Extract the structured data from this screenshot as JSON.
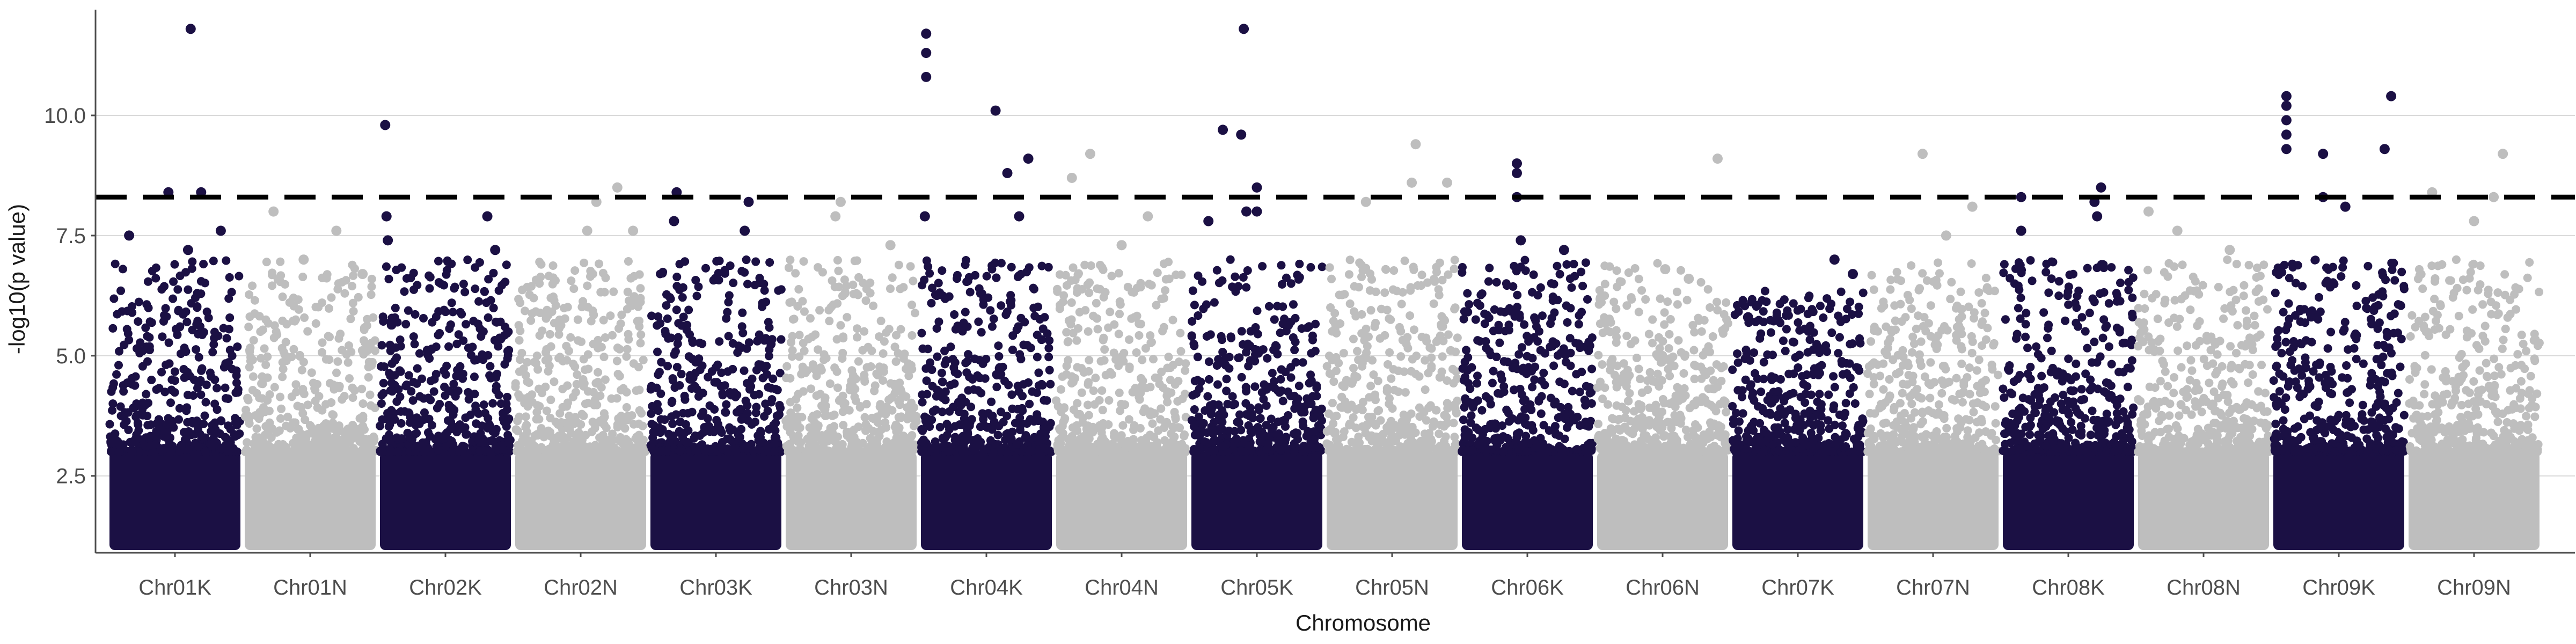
{
  "chart_data": {
    "type": "scatter",
    "title": "",
    "xlabel": "Chromosome",
    "ylabel": "-log10(p value)",
    "ylim": [
      0.9,
      12.2
    ],
    "yticks": [
      2.5,
      5.0,
      7.5,
      10.0
    ],
    "ytick_labels": [
      "2.5",
      "5.0",
      "7.5",
      "10.0"
    ],
    "grid": "horizontal major only",
    "legend": "none",
    "threshold": {
      "value": 8.3,
      "style": "dashed",
      "color": "#000000"
    },
    "colors": {
      "dark": "#1b1044",
      "light": "#bebebe"
    },
    "categories": [
      "Chr01K",
      "Chr01N",
      "Chr02K",
      "Chr02N",
      "Chr03K",
      "Chr03N",
      "Chr04K",
      "Chr04N",
      "Chr05K",
      "Chr05N",
      "Chr06K",
      "Chr06N",
      "Chr07K",
      "Chr07N",
      "Chr08K",
      "Chr08N",
      "Chr09K",
      "Chr09N"
    ],
    "series": [
      {
        "chromosome": "Chr01K",
        "color": "dark",
        "max": 11.8,
        "peaks": [
          [
            0.62,
            11.8
          ],
          [
            0.45,
            8.4
          ],
          [
            0.7,
            8.4
          ],
          [
            0.15,
            7.5
          ],
          [
            0.85,
            7.6
          ],
          [
            0.6,
            7.2
          ]
        ]
      },
      {
        "chromosome": "Chr01N",
        "color": "light",
        "max": 8.0,
        "peaks": [
          [
            0.22,
            8.0
          ],
          [
            0.7,
            7.6
          ],
          [
            0.45,
            7.0
          ],
          [
            0.9,
            6.7
          ]
        ]
      },
      {
        "chromosome": "Chr02K",
        "color": "dark",
        "max": 9.8,
        "peaks": [
          [
            0.04,
            9.8
          ],
          [
            0.05,
            7.9
          ],
          [
            0.06,
            7.4
          ],
          [
            0.82,
            7.9
          ],
          [
            0.88,
            7.2
          ]
        ]
      },
      {
        "chromosome": "Chr02N",
        "color": "light",
        "max": 8.5,
        "peaks": [
          [
            0.78,
            8.5
          ],
          [
            0.62,
            8.2
          ],
          [
            0.55,
            7.6
          ],
          [
            0.9,
            7.6
          ]
        ]
      },
      {
        "chromosome": "Chr03K",
        "color": "dark",
        "max": 8.4,
        "peaks": [
          [
            0.2,
            8.4
          ],
          [
            0.18,
            7.8
          ],
          [
            0.75,
            8.2
          ],
          [
            0.72,
            7.6
          ],
          [
            0.5,
            6.6
          ]
        ]
      },
      {
        "chromosome": "Chr03N",
        "color": "light",
        "max": 8.2,
        "peaks": [
          [
            0.42,
            8.2
          ],
          [
            0.38,
            7.9
          ],
          [
            0.8,
            7.3
          ]
        ]
      },
      {
        "chromosome": "Chr04K",
        "color": "dark",
        "max": 11.7,
        "peaks": [
          [
            0.04,
            11.7
          ],
          [
            0.04,
            11.3
          ],
          [
            0.04,
            10.8
          ],
          [
            0.03,
            7.9
          ],
          [
            0.57,
            10.1
          ],
          [
            0.66,
            8.8
          ],
          [
            0.82,
            9.1
          ],
          [
            0.75,
            7.9
          ]
        ]
      },
      {
        "chromosome": "Chr04N",
        "color": "light",
        "max": 9.2,
        "peaks": [
          [
            0.26,
            9.2
          ],
          [
            0.12,
            8.7
          ],
          [
            0.7,
            7.9
          ],
          [
            0.5,
            7.3
          ]
        ]
      },
      {
        "chromosome": "Chr05K",
        "color": "dark",
        "max": 11.8,
        "peaks": [
          [
            0.4,
            11.8
          ],
          [
            0.24,
            9.7
          ],
          [
            0.38,
            9.6
          ],
          [
            0.5,
            8.5
          ],
          [
            0.42,
            8.0
          ],
          [
            0.5,
            8.0
          ],
          [
            0.13,
            7.8
          ]
        ]
      },
      {
        "chromosome": "Chr05N",
        "color": "light",
        "max": 9.4,
        "peaks": [
          [
            0.68,
            9.4
          ],
          [
            0.65,
            8.6
          ],
          [
            0.92,
            8.6
          ],
          [
            0.3,
            8.2
          ]
        ]
      },
      {
        "chromosome": "Chr06K",
        "color": "dark",
        "max": 9.0,
        "peaks": [
          [
            0.42,
            9.0
          ],
          [
            0.42,
            8.8
          ],
          [
            0.42,
            8.3
          ],
          [
            0.45,
            7.4
          ],
          [
            0.78,
            7.2
          ]
        ]
      },
      {
        "chromosome": "Chr06N",
        "color": "light",
        "max": 9.1,
        "peaks": [
          [
            0.92,
            9.1
          ],
          [
            0.52,
            6.8
          ],
          [
            0.7,
            6.6
          ]
        ]
      },
      {
        "chromosome": "Chr07K",
        "color": "dark",
        "max": 7.0,
        "peaks": [
          [
            0.78,
            7.0
          ],
          [
            0.92,
            6.7
          ],
          [
            0.12,
            5.8
          ]
        ]
      },
      {
        "chromosome": "Chr07N",
        "color": "light",
        "max": 9.2,
        "peaks": [
          [
            0.42,
            9.2
          ],
          [
            0.8,
            8.1
          ],
          [
            0.6,
            7.5
          ]
        ]
      },
      {
        "chromosome": "Chr08K",
        "color": "dark",
        "max": 8.5,
        "peaks": [
          [
            0.75,
            8.5
          ],
          [
            0.7,
            8.2
          ],
          [
            0.72,
            7.9
          ],
          [
            0.14,
            8.3
          ],
          [
            0.14,
            7.6
          ]
        ]
      },
      {
        "chromosome": "Chr08N",
        "color": "light",
        "max": 8.0,
        "peaks": [
          [
            0.08,
            8.0
          ],
          [
            0.3,
            7.6
          ],
          [
            0.7,
            7.2
          ]
        ]
      },
      {
        "chromosome": "Chr09K",
        "color": "dark",
        "max": 10.4,
        "peaks": [
          [
            0.1,
            10.4
          ],
          [
            0.1,
            10.2
          ],
          [
            0.1,
            9.9
          ],
          [
            0.1,
            9.6
          ],
          [
            0.1,
            9.3
          ],
          [
            0.9,
            10.4
          ],
          [
            0.38,
            9.2
          ],
          [
            0.38,
            8.3
          ],
          [
            0.85,
            9.3
          ],
          [
            0.55,
            8.1
          ]
        ]
      },
      {
        "chromosome": "Chr09N",
        "color": "light",
        "max": 9.2,
        "peaks": [
          [
            0.72,
            9.2
          ],
          [
            0.18,
            8.4
          ],
          [
            0.65,
            8.3
          ],
          [
            0.5,
            7.8
          ]
        ]
      }
    ]
  }
}
